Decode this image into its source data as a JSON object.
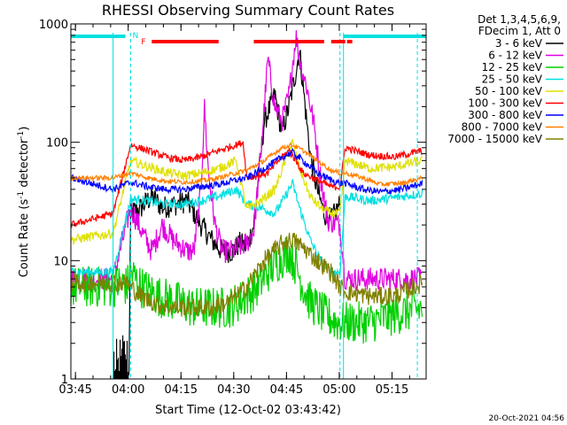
{
  "chart_data": {
    "type": "line",
    "title": "RHESSI Observing Summary Count Rates",
    "xlabel": "Start Time (12-Oct-02 03:43:42)",
    "ylabel_main": "Count Rate (s",
    "ylabel_sup": "-1",
    "ylabel_tail": " detector",
    "ylabel_sup2": "-1",
    "ylabel_end": ")",
    "xlim_min": [
      0,
      101
    ],
    "ylim": [
      1,
      1000
    ],
    "yscale": "log",
    "x_ticks": [
      {
        "min": 1.3,
        "label": "03:45"
      },
      {
        "min": 16.3,
        "label": "04:00"
      },
      {
        "min": 31.3,
        "label": "04:15"
      },
      {
        "min": 46.3,
        "label": "04:30"
      },
      {
        "min": 61.3,
        "label": "04:45"
      },
      {
        "min": 76.3,
        "label": "05:00"
      },
      {
        "min": 91.3,
        "label": "05:15"
      }
    ],
    "y_ticks": [
      {
        "v": 1,
        "label": "1"
      },
      {
        "v": 10,
        "label": "10"
      },
      {
        "v": 100,
        "label": "100"
      },
      {
        "v": 1000,
        "label": "1000"
      }
    ],
    "legend_header": [
      "Det 1,3,4,5,6,9,",
      "FDecim 1, Att 0"
    ],
    "legend_position": "right",
    "timestamp": "20-Oct-2021 04:56",
    "flags": {
      "N_label": "N",
      "F_label": "F",
      "night_bars": [
        [
          0,
          15.5
        ],
        [
          77.5,
          101
        ]
      ],
      "flare_bars": [
        [
          23,
          42
        ],
        [
          52,
          72
        ],
        [
          74,
          78
        ],
        [
          78.5,
          80
        ]
      ],
      "night_color": "#00e0e0",
      "flare_color": "#ff0000"
    },
    "night_boundaries": [
      {
        "min": 12,
        "style": "solid"
      },
      {
        "min": 17,
        "style": "dashed"
      },
      {
        "min": 76.5,
        "style": "dashed"
      },
      {
        "min": 77.5,
        "style": "solid"
      },
      {
        "min": 98.5,
        "style": "dashed"
      }
    ],
    "series": [
      {
        "name": "3 - 6 keV",
        "color": "#000000",
        "noise": 0.1,
        "points": [
          [
            16.5,
            1
          ],
          [
            17,
            25
          ],
          [
            20,
            28
          ],
          [
            23,
            35
          ],
          [
            26,
            28
          ],
          [
            30,
            30
          ],
          [
            33,
            32
          ],
          [
            37,
            20
          ],
          [
            40,
            15
          ],
          [
            43,
            12
          ],
          [
            46,
            12
          ],
          [
            48,
            14
          ],
          [
            50,
            13
          ],
          [
            52,
            20
          ],
          [
            55,
            150
          ],
          [
            58,
            250
          ],
          [
            60,
            120
          ],
          [
            62,
            200
          ],
          [
            64,
            400
          ],
          [
            65,
            600
          ],
          [
            66,
            300
          ],
          [
            68,
            80
          ],
          [
            70,
            40
          ],
          [
            72,
            25
          ],
          [
            74,
            22
          ],
          [
            76.5,
            30
          ]
        ],
        "extra": [
          [
            12,
            1.5
          ],
          [
            14,
            1.6
          ],
          [
            16,
            1.8
          ]
        ]
      },
      {
        "name": "6 - 12 keV",
        "color": "#e000e0",
        "noise": 0.1,
        "points": [
          [
            0,
            7
          ],
          [
            12,
            7
          ],
          [
            17,
            28
          ],
          [
            20,
            18
          ],
          [
            23,
            12
          ],
          [
            26,
            20
          ],
          [
            29,
            15
          ],
          [
            33,
            12
          ],
          [
            35,
            12
          ],
          [
            37,
            40
          ],
          [
            38,
            200
          ],
          [
            39,
            60
          ],
          [
            41,
            20
          ],
          [
            43,
            12
          ],
          [
            46,
            12
          ],
          [
            48,
            13
          ],
          [
            50,
            14
          ],
          [
            52,
            18
          ],
          [
            54,
            80
          ],
          [
            56,
            500
          ],
          [
            58,
            200
          ],
          [
            60,
            150
          ],
          [
            62,
            250
          ],
          [
            64,
            800
          ],
          [
            65,
            500
          ],
          [
            67,
            300
          ],
          [
            69,
            150
          ],
          [
            71,
            50
          ],
          [
            73,
            22
          ],
          [
            76.5,
            20
          ],
          [
            78,
            7
          ],
          [
            85,
            7
          ],
          [
            95,
            7
          ],
          [
            100,
            7
          ]
        ]
      },
      {
        "name": "12 - 25 keV",
        "color": "#00d000",
        "noise": 0.18,
        "points": [
          [
            0,
            6
          ],
          [
            12,
            6
          ],
          [
            14,
            6.5
          ],
          [
            16,
            6
          ],
          [
            17,
            8
          ],
          [
            20,
            6
          ],
          [
            25,
            5
          ],
          [
            30,
            4.5
          ],
          [
            35,
            4
          ],
          [
            40,
            4
          ],
          [
            45,
            4
          ],
          [
            50,
            5
          ],
          [
            53,
            6
          ],
          [
            56,
            8
          ],
          [
            59,
            10
          ],
          [
            62,
            12
          ],
          [
            64,
            9
          ],
          [
            66,
            6
          ],
          [
            68,
            4.5
          ],
          [
            72,
            3.5
          ],
          [
            76,
            3
          ],
          [
            78,
            3
          ],
          [
            85,
            3
          ],
          [
            92,
            3.5
          ],
          [
            100,
            4
          ]
        ]
      },
      {
        "name": "25 - 50 keV",
        "color": "#00e0e0",
        "noise": 0.04,
        "points": [
          [
            0,
            8
          ],
          [
            12,
            8
          ],
          [
            17,
            33
          ],
          [
            22,
            32
          ],
          [
            27,
            30
          ],
          [
            32,
            30
          ],
          [
            37,
            32
          ],
          [
            42,
            35
          ],
          [
            47,
            40
          ],
          [
            50,
            30
          ],
          [
            54,
            28
          ],
          [
            58,
            25
          ],
          [
            61,
            35
          ],
          [
            63,
            45
          ],
          [
            65,
            28
          ],
          [
            68,
            15
          ],
          [
            71,
            10
          ],
          [
            74,
            8
          ],
          [
            76.5,
            8
          ],
          [
            78,
            35
          ],
          [
            85,
            32
          ],
          [
            92,
            34
          ],
          [
            100,
            37
          ]
        ]
      },
      {
        "name": "50 - 100 keV",
        "color": "#e0e000",
        "noise": 0.04,
        "points": [
          [
            0,
            15
          ],
          [
            12,
            17
          ],
          [
            17,
            70
          ],
          [
            22,
            62
          ],
          [
            27,
            56
          ],
          [
            32,
            52
          ],
          [
            37,
            55
          ],
          [
            42,
            60
          ],
          [
            47,
            70
          ],
          [
            50,
            27
          ],
          [
            54,
            32
          ],
          [
            58,
            40
          ],
          [
            61,
            70
          ],
          [
            63,
            100
          ],
          [
            65,
            60
          ],
          [
            68,
            35
          ],
          [
            71,
            28
          ],
          [
            74,
            25
          ],
          [
            76.5,
            25
          ],
          [
            78,
            70
          ],
          [
            85,
            60
          ],
          [
            92,
            62
          ],
          [
            100,
            70
          ]
        ]
      },
      {
        "name": "100 - 300 keV",
        "color": "#ff0000",
        "noise": 0.03,
        "points": [
          [
            0,
            20
          ],
          [
            12,
            25
          ],
          [
            17,
            95
          ],
          [
            22,
            85
          ],
          [
            27,
            75
          ],
          [
            32,
            70
          ],
          [
            37,
            75
          ],
          [
            42,
            85
          ],
          [
            47,
            95
          ],
          [
            49,
            100
          ],
          [
            50,
            50
          ],
          [
            53,
            52
          ],
          [
            56,
            55
          ],
          [
            59,
            70
          ],
          [
            62,
            85
          ],
          [
            64,
            70
          ],
          [
            66,
            55
          ],
          [
            70,
            48
          ],
          [
            74,
            42
          ],
          [
            76.5,
            42
          ],
          [
            78,
            90
          ],
          [
            85,
            78
          ],
          [
            92,
            75
          ],
          [
            100,
            85
          ]
        ]
      },
      {
        "name": "300 - 800 keV",
        "color": "#0000ff",
        "noise": 0.03,
        "points": [
          [
            0,
            50
          ],
          [
            12,
            40
          ],
          [
            17,
            46
          ],
          [
            22,
            42
          ],
          [
            27,
            40
          ],
          [
            32,
            40
          ],
          [
            37,
            42
          ],
          [
            42,
            44
          ],
          [
            47,
            48
          ],
          [
            50,
            50
          ],
          [
            55,
            60
          ],
          [
            60,
            75
          ],
          [
            63,
            82
          ],
          [
            66,
            70
          ],
          [
            70,
            55
          ],
          [
            74,
            48
          ],
          [
            76.5,
            45
          ],
          [
            78,
            45
          ],
          [
            83,
            40
          ],
          [
            88,
            38
          ],
          [
            94,
            40
          ],
          [
            100,
            45
          ]
        ]
      },
      {
        "name": "800 - 7000 keV",
        "color": "#ff8000",
        "noise": 0.02,
        "points": [
          [
            0,
            50
          ],
          [
            12,
            50
          ],
          [
            17,
            55
          ],
          [
            22,
            50
          ],
          [
            27,
            47
          ],
          [
            32,
            46
          ],
          [
            37,
            47
          ],
          [
            42,
            50
          ],
          [
            47,
            55
          ],
          [
            50,
            58
          ],
          [
            55,
            70
          ],
          [
            60,
            90
          ],
          [
            63,
            95
          ],
          [
            66,
            85
          ],
          [
            70,
            70
          ],
          [
            74,
            58
          ],
          [
            76.5,
            55
          ],
          [
            78,
            55
          ],
          [
            83,
            50
          ],
          [
            88,
            44
          ],
          [
            94,
            45
          ],
          [
            100,
            50
          ]
        ]
      },
      {
        "name": "7000 - 15000 keV",
        "color": "#808000",
        "noise": 0.08,
        "points": [
          [
            0,
            6.5
          ],
          [
            12,
            6.5
          ],
          [
            14,
            6.5
          ],
          [
            16,
            6.5
          ],
          [
            17,
            6
          ],
          [
            20,
            5
          ],
          [
            25,
            4.2
          ],
          [
            30,
            4
          ],
          [
            35,
            4
          ],
          [
            40,
            4
          ],
          [
            45,
            4.5
          ],
          [
            50,
            6
          ],
          [
            55,
            10
          ],
          [
            60,
            14
          ],
          [
            63,
            15
          ],
          [
            66,
            13
          ],
          [
            70,
            10
          ],
          [
            74,
            8
          ],
          [
            76.5,
            6
          ],
          [
            78,
            5.5
          ],
          [
            85,
            5
          ],
          [
            92,
            5
          ],
          [
            100,
            6.5
          ]
        ]
      }
    ]
  }
}
